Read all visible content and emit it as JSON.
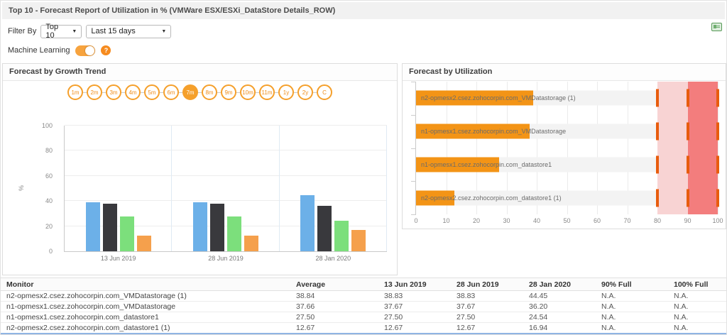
{
  "window": {
    "title": "Top 10 - Forecast Report of Utilization in % (VMWare ESX/ESXi_DataStore Details_ROW)"
  },
  "filters": {
    "label": "Filter By",
    "top_n_value": "Top 10",
    "period_value": "Last 15 days",
    "caret": "▼"
  },
  "machine_learning": {
    "label": "Machine Learning",
    "state": "on",
    "help_icon": "?"
  },
  "growth_panel": {
    "ranges": [
      "1m",
      "2m",
      "3m",
      "4m",
      "5m",
      "6m",
      "7m",
      "8m",
      "9m",
      "10m",
      "11m",
      "1y",
      "2y",
      "C"
    ],
    "active_range": "7m",
    "accent_color": "#f5a02c"
  },
  "chart_data": [
    {
      "type": "bar",
      "title": "Forecast by Growth Trend",
      "categories": [
        "13 Jun 2019",
        "28 Jun 2019",
        "28 Jan 2020"
      ],
      "series": [
        {
          "name": "n2-opmesx2.csez.zohocorpin.com_VMDatastorage (1)",
          "color": "#6cb0e8",
          "values": [
            38.83,
            38.83,
            44.45
          ]
        },
        {
          "name": "n1-opmesx1.csez.zohocorpin.com_VMDatastorage",
          "color": "#39393d",
          "values": [
            37.67,
            37.67,
            36.2
          ]
        },
        {
          "name": "n1-opmesx1.csez.zohocorpin.com_datastore1",
          "color": "#7cdf7c",
          "values": [
            27.5,
            27.5,
            24.54
          ]
        },
        {
          "name": "n2-opmesx2.csez.zohocorpin.com_datastore1 (1)",
          "color": "#f5a04c",
          "values": [
            12.67,
            12.67,
            16.94
          ]
        }
      ],
      "xlabel": "",
      "ylabel": "%",
      "ylim": [
        0,
        100
      ],
      "yticks": [
        0,
        20,
        40,
        60,
        80,
        100
      ],
      "grid": true,
      "legend": "none"
    },
    {
      "type": "bar-horizontal",
      "title": "Forecast by Utilization",
      "bars": [
        {
          "label": "n2-opmesx2.csez.zohocorpin.com_VMDatastorage (1)",
          "value": 38.84
        },
        {
          "label": "n1-opmesx1.csez.zohocorpin.com_VMDatastorage",
          "value": 37.66
        },
        {
          "label": "n1-opmesx1.csez.zohocorpin.com_datastore1",
          "value": 27.5
        },
        {
          "label": "n2-opmesx2.csez.zohocorpin.com_datastore1 (1)",
          "value": 12.67
        }
      ],
      "xlim": [
        0,
        100
      ],
      "xticks": [
        0,
        10,
        20,
        30,
        40,
        50,
        60,
        70,
        80,
        90,
        100
      ],
      "bar_color": "#f39416",
      "warning_zone": {
        "from": 80,
        "to": 90,
        "color": "#f8d3d3"
      },
      "critical_zone": {
        "from": 90,
        "to": 100,
        "color": "#f37d7d"
      },
      "markers": [
        80,
        90,
        100
      ],
      "marker_color": "#e85c0d",
      "grid": true,
      "legend": "none"
    }
  ],
  "table": {
    "columns": [
      "Monitor",
      "Average",
      "13 Jun 2019",
      "28 Jun 2019",
      "28 Jan 2020",
      "90% Full",
      "100% Full"
    ],
    "rows": [
      [
        "n2-opmesx2.csez.zohocorpin.com_VMDatastorage (1)",
        "38.84",
        "38.83",
        "38.83",
        "44.45",
        "N.A.",
        "N.A."
      ],
      [
        "n1-opmesx1.csez.zohocorpin.com_VMDatastorage",
        "37.66",
        "37.67",
        "37.67",
        "36.20",
        "N.A.",
        "N.A."
      ],
      [
        "n1-opmesx1.csez.zohocorpin.com_datastore1",
        "27.50",
        "27.50",
        "27.50",
        "24.54",
        "N.A.",
        "N.A."
      ],
      [
        "n2-opmesx2.csez.zohocorpin.com_datastore1 (1)",
        "12.67",
        "12.67",
        "12.67",
        "16.94",
        "N.A.",
        "N.A."
      ]
    ]
  }
}
